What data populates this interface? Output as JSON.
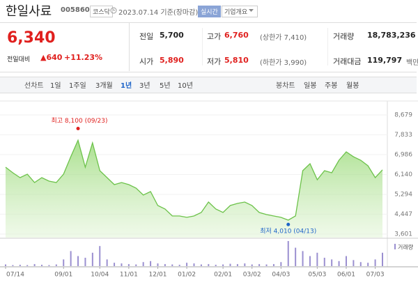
{
  "header": {
    "title": "한일사료",
    "code": "005860",
    "market": "코스닥",
    "date": "2023.07.14 기준(장마감)",
    "realtime": "실시간",
    "company_menu": "기업개요"
  },
  "price": {
    "current": "6,340",
    "change_label": "전일대비",
    "change": "▲640",
    "change_rate": "+11.23%"
  },
  "quote": {
    "rows": [
      [
        {
          "label": "전일",
          "value": "5,700"
        },
        {
          "label": "고가",
          "value": "6,760",
          "sub": "(상한가 7,410)"
        },
        {
          "label": "거래량",
          "value": "18,783,236"
        }
      ],
      [
        {
          "label": "시가",
          "value": "5,890"
        },
        {
          "label": "저가",
          "value": "5,810",
          "sub": "(하한가 3,990)"
        },
        {
          "label": "거래대금",
          "value": "119,797",
          "unit": "백만"
        }
      ]
    ]
  },
  "tabs": {
    "line_label": "선차트",
    "line": [
      "1일",
      "1주일",
      "3개월",
      "1년",
      "3년",
      "5년",
      "10년"
    ],
    "selected_index": 3,
    "candle_label": "봉차트",
    "candle": [
      "일봉",
      "주봉",
      "월봉"
    ]
  },
  "chart_data": {
    "type": "line",
    "categories": [
      "07/14",
      null,
      null,
      null,
      null,
      null,
      null,
      null,
      "09/01",
      null,
      null,
      null,
      null,
      "10/04",
      null,
      null,
      null,
      "11/01",
      null,
      null,
      null,
      "12/01",
      null,
      null,
      null,
      "01/02",
      null,
      null,
      null,
      null,
      "02/01",
      null,
      null,
      null,
      "03/02",
      null,
      null,
      null,
      "04/03",
      null,
      null,
      null,
      null,
      "05/03",
      null,
      null,
      null,
      "06/01",
      null,
      null,
      null,
      "07/03",
      null
    ],
    "values": [
      6452,
      6214,
      6007,
      6155,
      5799,
      6007,
      5858,
      5799,
      6155,
      6898,
      7600,
      6452,
      7492,
      6304,
      6007,
      5710,
      5799,
      5710,
      5561,
      5264,
      5413,
      4819,
      4670,
      4373,
      4373,
      4314,
      4373,
      4522,
      4967,
      4670,
      4522,
      4819,
      4908,
      4967,
      4819,
      4522,
      4433,
      4373,
      4314,
      4195,
      4373,
      6304,
      6601,
      5918,
      6304,
      6214,
      6749,
      7106,
      6898,
      6749,
      6512,
      6007,
      6340
    ],
    "color": "#6cc24a",
    "ylim": [
      3601,
      8679
    ],
    "yticks": [
      {
        "value": 3601,
        "label": "3,601"
      },
      {
        "value": 4447,
        "label": "4,447"
      },
      {
        "value": 5294,
        "label": "5,294"
      },
      {
        "value": 6140,
        "label": "6,140"
      },
      {
        "value": 6986,
        "label": "6,986"
      },
      {
        "value": 7833,
        "label": "7,833"
      },
      {
        "value": 8679,
        "label": "8,679"
      }
    ],
    "grid": true,
    "high": {
      "text": "최고 8,100 (09/23)",
      "value": 8100,
      "color": "#e0201e"
    },
    "low": {
      "text": "최저 4,010 (04/13)",
      "value": 4010,
      "color": "#1e64c8"
    },
    "volume": {
      "name": "거래량",
      "color": "#9a8fd0",
      "values": [
        5,
        3,
        4,
        3,
        6,
        4,
        3,
        5,
        20,
        45,
        30,
        25,
        40,
        60,
        20,
        10,
        8,
        6,
        5,
        12,
        15,
        8,
        6,
        5,
        4,
        10,
        8,
        5,
        6,
        4,
        5,
        7,
        6,
        8,
        5,
        6,
        5,
        6,
        12,
        75,
        55,
        45,
        30,
        40,
        25,
        20,
        15,
        30,
        18,
        12,
        10,
        20,
        40
      ]
    }
  }
}
